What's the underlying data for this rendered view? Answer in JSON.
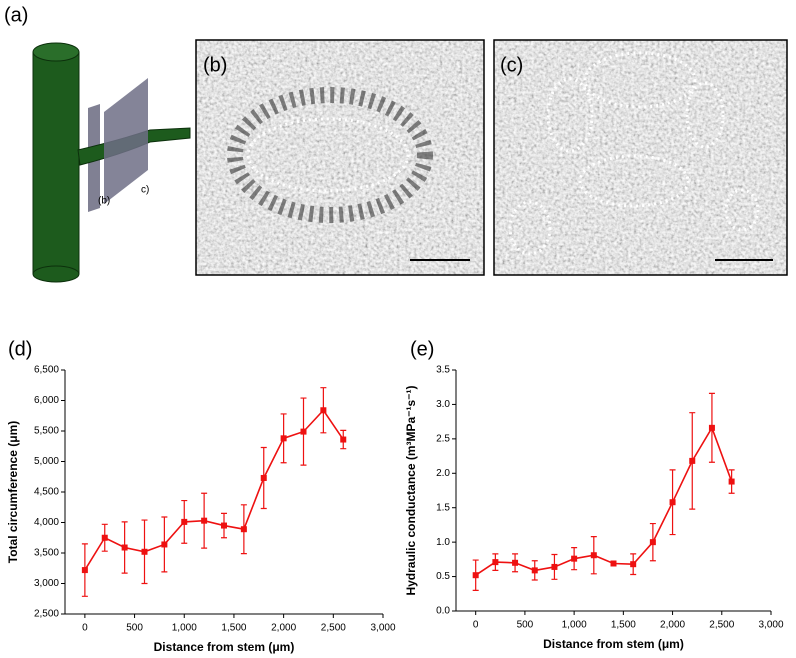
{
  "figure": {
    "panels": [
      {
        "label": "(a)",
        "annotations": [
          "(b)",
          "c)"
        ]
      },
      {
        "label": "(b)"
      },
      {
        "label": "(c)"
      }
    ]
  },
  "chart_data": [
    {
      "type": "line",
      "panel_label": "(d)",
      "xlabel": "Distance from stem (μm)",
      "ylabel": "Total circumference (μm)",
      "color": "#ee1111",
      "x": [
        0,
        200,
        400,
        600,
        800,
        1000,
        1200,
        1400,
        1600,
        1800,
        2000,
        2200,
        2400,
        2600
      ],
      "values": [
        3220,
        3750,
        3590,
        3520,
        3640,
        4010,
        4030,
        3950,
        3890,
        4730,
        5380,
        5490,
        5840,
        5360
      ],
      "errors": [
        430,
        220,
        420,
        520,
        450,
        350,
        450,
        200,
        400,
        500,
        400,
        550,
        370,
        150
      ],
      "xlim": [
        -200,
        3000
      ],
      "xticks": [
        0,
        500,
        {
          "value": 1000,
          "label": "1,000"
        },
        {
          "value": 1500,
          "label": "1,500"
        },
        {
          "value": 2000,
          "label": "2,000"
        },
        {
          "value": 2500,
          "label": "2,500"
        },
        {
          "value": 3000,
          "label": "3,000"
        }
      ],
      "ylim": [
        2500,
        6500
      ],
      "yticks": [
        {
          "value": 2500,
          "label": "2,500"
        },
        {
          "value": 3000,
          "label": "3,000"
        },
        {
          "value": 3500,
          "label": "3,500"
        },
        {
          "value": 4000,
          "label": "4,000"
        },
        {
          "value": 4500,
          "label": "4,500"
        },
        {
          "value": 5000,
          "label": "5,000"
        },
        {
          "value": 5500,
          "label": "5,500"
        },
        {
          "value": 6000,
          "label": "6,000"
        },
        {
          "value": 6500,
          "label": "6,500"
        }
      ]
    },
    {
      "type": "line",
      "panel_label": "(e)",
      "xlabel": "Distance from stem (μm)",
      "ylabel": "Hydraulic conductance (m³MPa⁻¹s⁻¹)",
      "color": "#ee1111",
      "x": [
        0,
        200,
        400,
        600,
        800,
        1000,
        1200,
        1400,
        1600,
        1800,
        2000,
        2200,
        2400,
        2600
      ],
      "values": [
        0.52,
        0.71,
        0.7,
        0.59,
        0.64,
        0.76,
        0.81,
        0.69,
        0.68,
        1.0,
        1.58,
        2.18,
        2.66,
        1.88
      ],
      "errors": [
        0.22,
        0.12,
        0.13,
        0.14,
        0.18,
        0.16,
        0.27,
        0.03,
        0.15,
        0.27,
        0.47,
        0.7,
        0.5,
        0.17
      ],
      "xlim": [
        -200,
        3000
      ],
      "xticks": [
        0,
        500,
        {
          "value": 1000,
          "label": "1,000"
        },
        {
          "value": 1500,
          "label": "1,500"
        },
        {
          "value": 2000,
          "label": "2,000"
        },
        {
          "value": 2500,
          "label": "2,500"
        },
        {
          "value": 3000,
          "label": "3,000"
        }
      ],
      "ylim": [
        0,
        3.5
      ],
      "yticks": [
        {
          "value": 0,
          "label": "0.0"
        },
        0.5,
        {
          "value": 1,
          "label": "1.0"
        },
        1.5,
        {
          "value": 2,
          "label": "2.0"
        },
        2.5,
        {
          "value": 3,
          "label": "3.0"
        },
        3.5
      ]
    }
  ]
}
